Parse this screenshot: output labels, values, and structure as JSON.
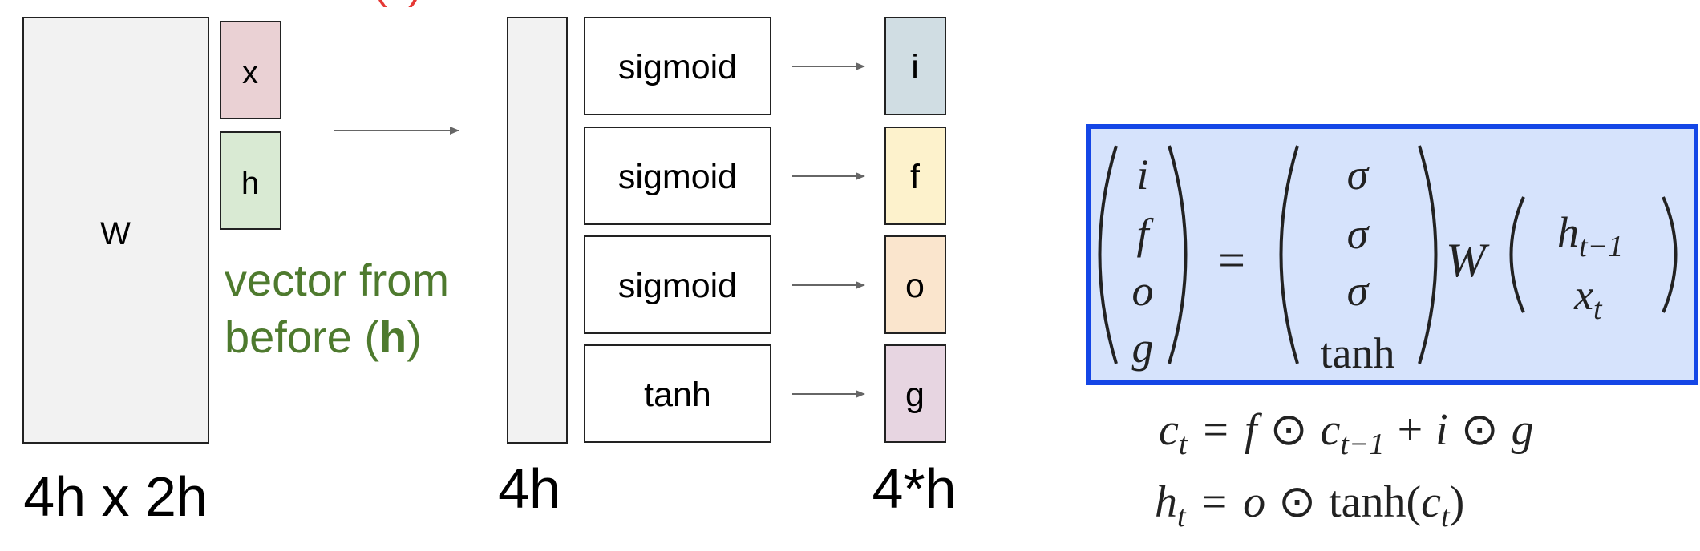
{
  "top_fragment": "(x)",
  "matrix": {
    "label": "W",
    "dim_label": "4h x 2h"
  },
  "input_vectors": [
    {
      "label": "x",
      "fill": "#ead1d4"
    },
    {
      "label": "h",
      "fill": "#d9ead3"
    }
  ],
  "vector_note": {
    "line1": "vector from",
    "line2_prefix": "before (",
    "line2_bold": "h",
    "line2_suffix": ")",
    "color": "#4e7a2e"
  },
  "mid_vector": {
    "dim_label": "4h"
  },
  "activations": [
    "sigmoid",
    "sigmoid",
    "sigmoid",
    "tanh"
  ],
  "gates": [
    {
      "label": "i",
      "fill": "#d0dde3"
    },
    {
      "label": "f",
      "fill": "#fdf2cc"
    },
    {
      "label": "o",
      "fill": "#fae5cd"
    },
    {
      "label": "g",
      "fill": "#e7d5e1"
    }
  ],
  "gates_dim_label": "4*h",
  "equation_box": {
    "fill": "#d6e3fc",
    "border": "#1446e6",
    "lhs": [
      "i",
      "f",
      "o",
      "g"
    ],
    "equals": "=",
    "activations": [
      "σ",
      "σ",
      "σ",
      "tanh"
    ],
    "weight": "W",
    "inputs": [
      {
        "base": "h",
        "sub": "t−1"
      },
      {
        "base": "x",
        "sub": "t"
      }
    ]
  },
  "equations": [
    {
      "lhs": "c",
      "lhs_sub": "t",
      "eq": "=",
      "terms": [
        "f",
        "⊙",
        "c",
        "+",
        "i",
        "⊙",
        "g"
      ],
      "c_sub": "t−1"
    },
    {
      "lhs": "h",
      "lhs_sub": "t",
      "eq": "=",
      "rhs_var": "o",
      "op": "⊙",
      "fn": "tanh",
      "arg": "c",
      "arg_sub": "t"
    }
  ]
}
